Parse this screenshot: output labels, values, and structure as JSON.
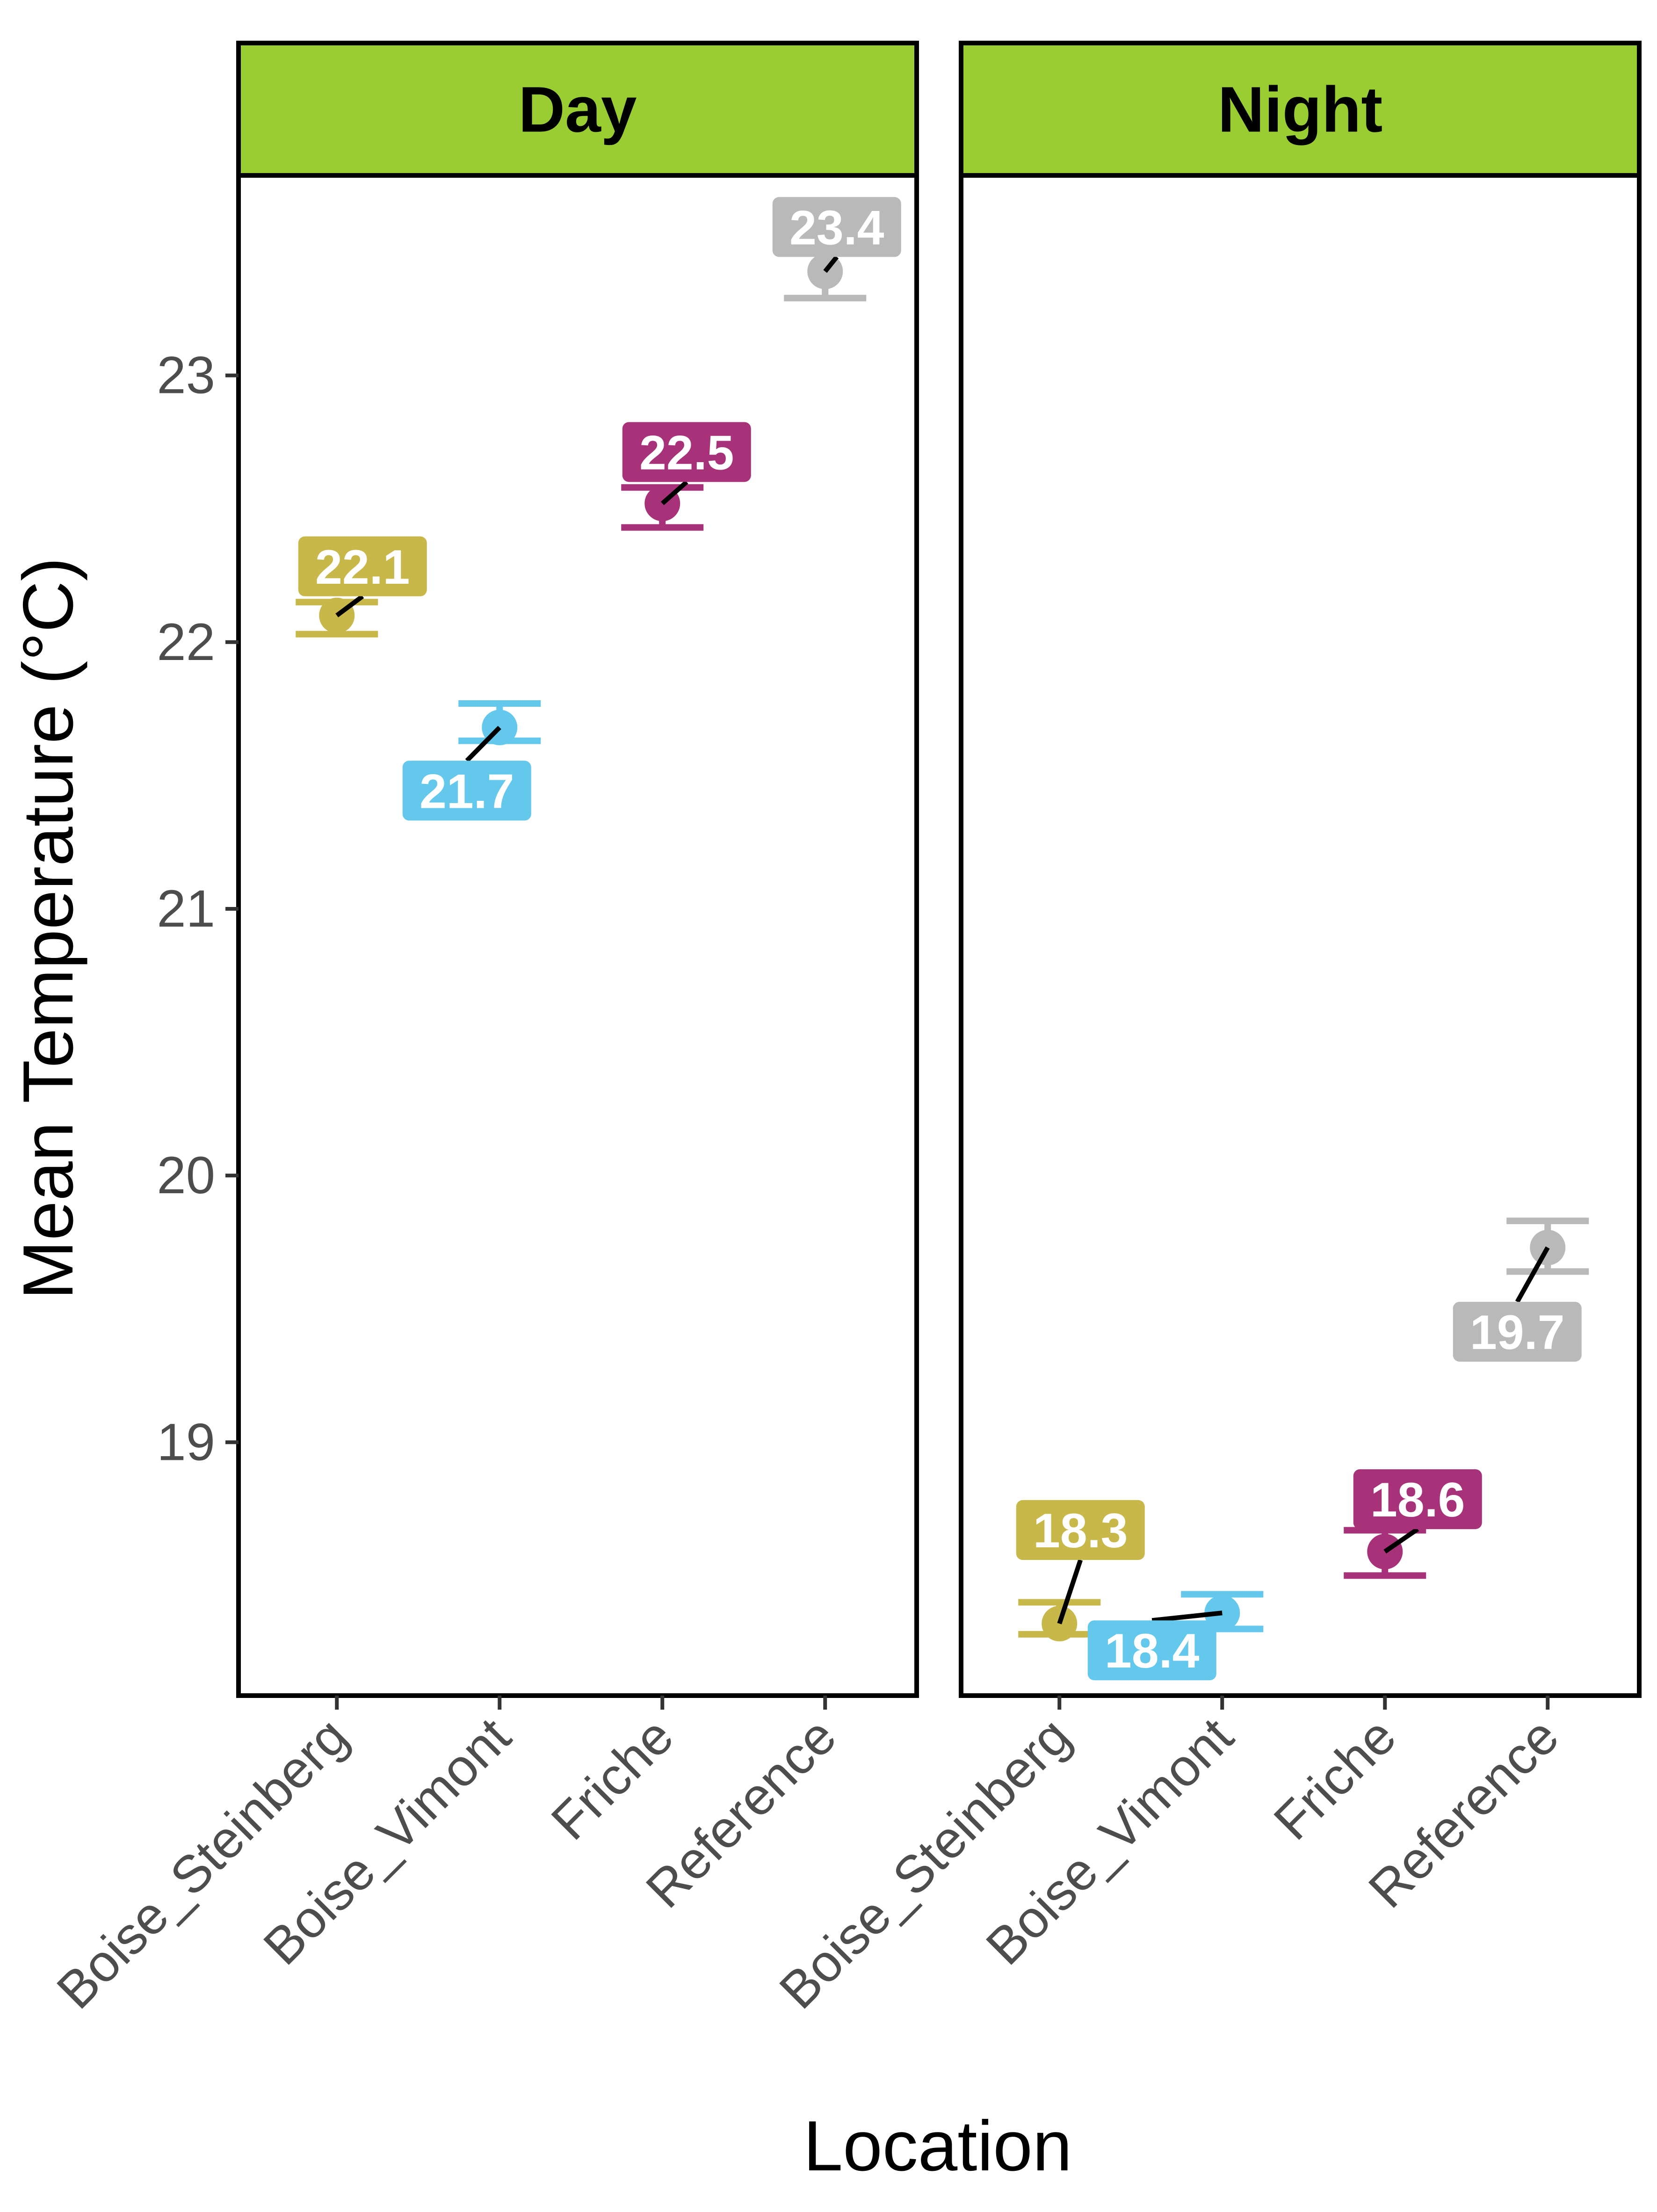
{
  "chart_data": {
    "type": "scatter",
    "xlabel": "Location",
    "ylabel": "Mean Temperature (°C)",
    "categories": [
      "Boise_Steinberg",
      "Boise_Vimont",
      "Friche",
      "Reference"
    ],
    "y_ticks": [
      "19",
      "20",
      "21",
      "22",
      "23"
    ],
    "ylim": [
      18.05,
      23.75
    ],
    "colors": {
      "Boise_Steinberg": "#c8b84a",
      "Boise_Vimont": "#63c8ec",
      "Friche": "#a8327a",
      "Reference": "#b9b9b9",
      "strip_fill": "#9acd32"
    },
    "panels": [
      {
        "label": "Day",
        "points": [
          {
            "category": "Boise_Steinberg",
            "mean": 22.1,
            "lower": 22.03,
            "upper": 22.15,
            "label": "22.1"
          },
          {
            "category": "Boise_Vimont",
            "mean": 21.68,
            "lower": 21.63,
            "upper": 21.77,
            "label": "21.7"
          },
          {
            "category": "Friche",
            "mean": 22.52,
            "lower": 22.43,
            "upper": 22.58,
            "label": "22.5"
          },
          {
            "category": "Reference",
            "mean": 23.39,
            "lower": 23.29,
            "upper": 23.46,
            "label": "23.4"
          }
        ]
      },
      {
        "label": "Night",
        "points": [
          {
            "category": "Boise_Steinberg",
            "mean": 18.32,
            "lower": 18.28,
            "upper": 18.4,
            "label": "18.3"
          },
          {
            "category": "Boise_Vimont",
            "mean": 18.36,
            "lower": 18.3,
            "upper": 18.43,
            "label": "18.4"
          },
          {
            "category": "Friche",
            "mean": 18.59,
            "lower": 18.5,
            "upper": 18.67,
            "label": "18.6"
          },
          {
            "category": "Reference",
            "mean": 19.73,
            "lower": 19.64,
            "upper": 19.83,
            "label": "19.7"
          }
        ]
      }
    ]
  }
}
